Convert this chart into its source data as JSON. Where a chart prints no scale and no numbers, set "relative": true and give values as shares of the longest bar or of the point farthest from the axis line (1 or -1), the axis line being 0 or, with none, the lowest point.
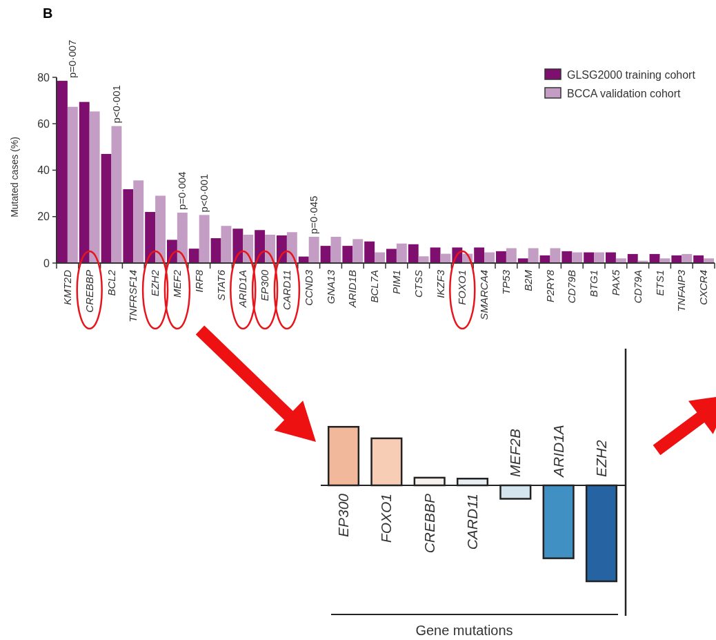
{
  "chart_data": [
    {
      "type": "bar",
      "title": "B",
      "ylabel": "Mutated cases (%)",
      "categories": [
        "KMT2D",
        "CREBBP",
        "BCL2",
        "TNFRSF14",
        "EZH2",
        "MEF2",
        "IRF8",
        "STAT6",
        "ARID1A",
        "EP300",
        "CARD11",
        "CCND3",
        "GNA13",
        "ARID1B",
        "BCL7A",
        "PIM1",
        "CTSS",
        "IKZF3",
        "FOXO1",
        "SMARCA4",
        "TP53",
        "B2M",
        "P2RY8",
        "CD79B",
        "BTG1",
        "PAX5",
        "CD79A",
        "ETS1",
        "TNFAIP3",
        "CXCR4"
      ],
      "series": [
        {
          "name": "GLSG2000 training cohort",
          "color": "#7f0f6e",
          "values": [
            78.5,
            69.4,
            47.0,
            31.8,
            22.0,
            10.0,
            6.2,
            10.7,
            14.8,
            14.2,
            11.9,
            2.8,
            7.4,
            7.4,
            9.3,
            6.1,
            8.1,
            6.7,
            6.7,
            6.7,
            5.1,
            2.0,
            3.3,
            5.1,
            4.6,
            4.6,
            3.9,
            3.9,
            3.3,
            3.3
          ]
        },
        {
          "name": "BCCA validation cohort",
          "color": "#c49dc4",
          "values": [
            67.3,
            65.3,
            59.0,
            35.6,
            29.0,
            21.7,
            20.7,
            16.0,
            12.2,
            12.2,
            13.3,
            11.3,
            11.3,
            10.3,
            4.6,
            8.4,
            2.9,
            4.0,
            4.0,
            4.6,
            6.4,
            6.4,
            6.4,
            4.6,
            4.6,
            2.0,
            1.0,
            2.0,
            3.9,
            2.0
          ]
        }
      ],
      "ylim": [
        0,
        80
      ],
      "yticks": [
        0,
        20,
        40,
        60,
        80
      ],
      "grid": false,
      "legend": "top right",
      "annotations": [
        {
          "text": "p=0·007",
          "x": "KMT2D",
          "y": 78.5
        },
        {
          "text": "p<0·001",
          "x": "BCL2",
          "y": 59.0
        },
        {
          "text": "p=0·004",
          "x": "MEF2",
          "y": 21.7
        },
        {
          "text": "p<0·001",
          "x": "IRF8",
          "y": 20.7
        },
        {
          "text": "p=0·045",
          "x": "CCND3",
          "y": 11.3
        }
      ]
    },
    {
      "type": "bar",
      "relative": true,
      "xlabel": "Gene mutations",
      "categories": [
        "EP300",
        "FOXO1",
        "CREBBP",
        "CARD11",
        "MEF2B",
        "ARID1A",
        "EZH2"
      ],
      "values": [
        0.61,
        0.49,
        0.08,
        0.07,
        -0.14,
        -0.76,
        -1
      ],
      "colors": [
        "#f2b89b",
        "#f8cdb6",
        "#f7f1ee",
        "#e8eef2",
        "#d4e5ef",
        "#4190c4",
        "#2563a3"
      ]
    }
  ]
}
